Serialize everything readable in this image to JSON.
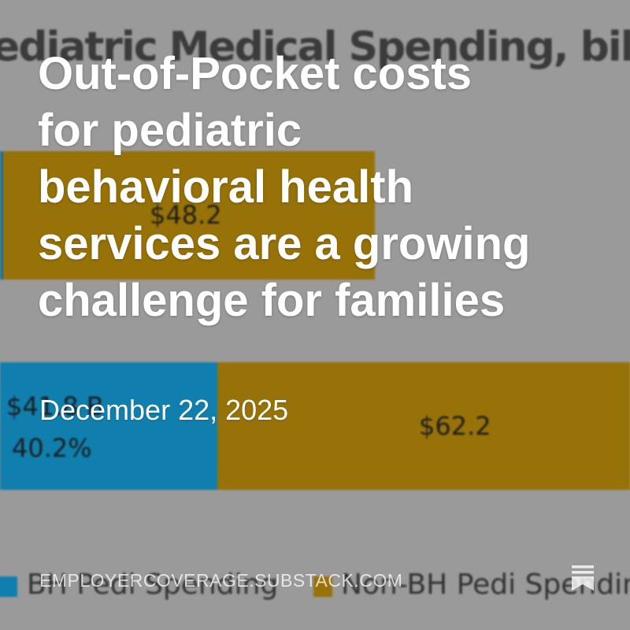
{
  "background_chart": {
    "title": "ediatric Medical Spending, billion",
    "labels": {
      "top_non_bh": "$48.2",
      "bottom_non_bh": "$62.2",
      "bottom_bh_amount": "$41.8 B",
      "bottom_bh_percent": "40.2%"
    },
    "legend": {
      "bh": "BH Pedi Spending",
      "non_bh": "Non-BH Pedi Spending"
    },
    "colors": {
      "bh": "#107fae",
      "non_bh": "#977208",
      "background": "#9a9a9a"
    }
  },
  "post": {
    "headline": "Out-of-Pocket costs for pediatric behavioral health services are a growing challenge for families",
    "date": "December 22, 2025",
    "site": "EMPLOYERCOVERAGE.SUBSTACK.COM",
    "brand_icon": "substack-icon"
  }
}
